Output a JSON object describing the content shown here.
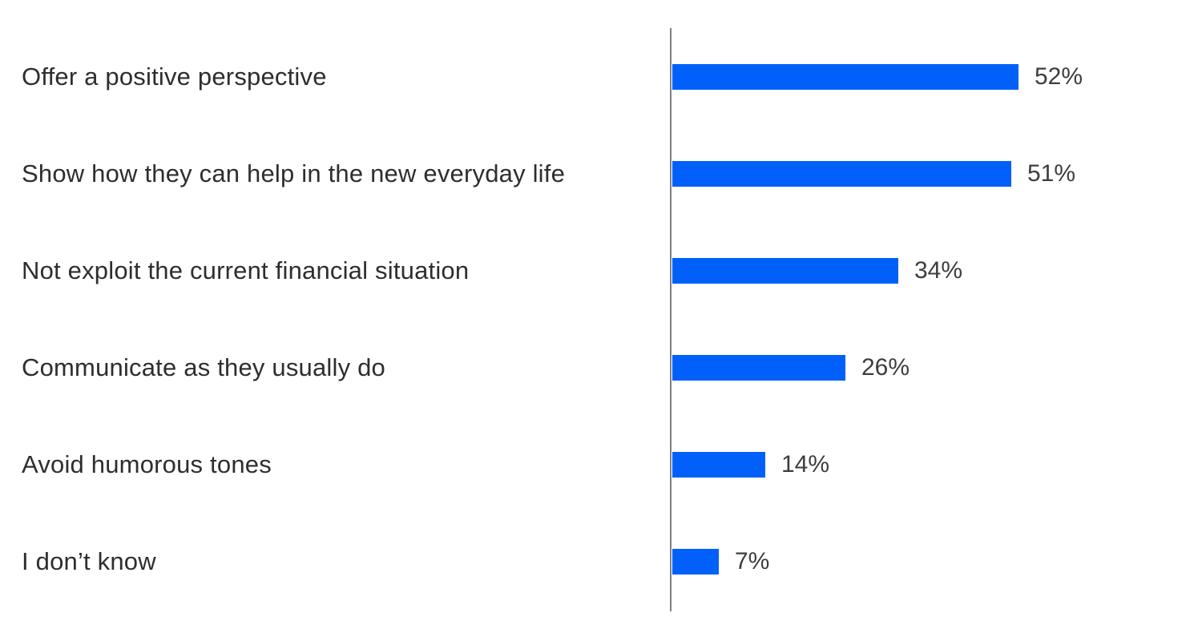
{
  "chart_data": {
    "type": "bar",
    "orientation": "horizontal",
    "title": "",
    "xlabel": "",
    "ylabel": "",
    "categories": [
      "Offer a positive perspective",
      "Show how they can help in the new everyday life",
      "Not exploit the current financial situation",
      "Communicate as they usually do",
      "Avoid humorous tones",
      "I don’t know"
    ],
    "values": [
      52,
      51,
      34,
      26,
      14,
      7
    ],
    "value_labels": [
      "52%",
      "51%",
      "34%",
      "26%",
      "14%",
      "7%"
    ],
    "xlim": [
      0,
      75
    ],
    "grid": false,
    "legend": false,
    "bar_color": "#0060f9",
    "axis_line_color": "#7f7f7f",
    "category_text_color": "#2e2e2e",
    "value_text_color": "#3d3d3d",
    "background_color": "#ffffff"
  }
}
